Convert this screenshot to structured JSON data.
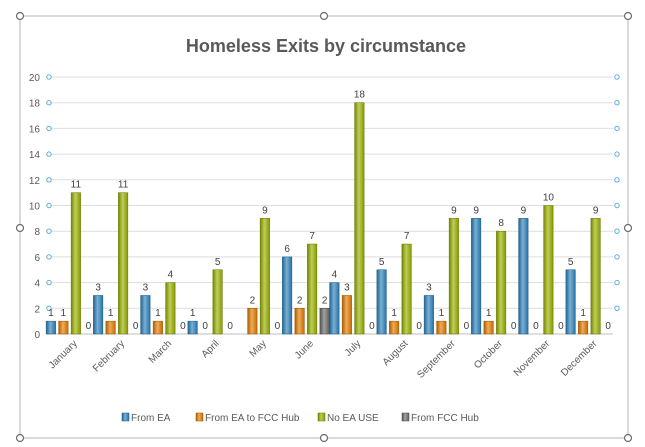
{
  "chart_data": {
    "type": "bar",
    "title": "Homeless Exits by circumstance",
    "xlabel": "",
    "ylabel": "",
    "ylim": [
      0,
      20
    ],
    "yticks": [
      "0",
      "2",
      "4",
      "6",
      "8",
      "10",
      "12",
      "14",
      "16",
      "18",
      "20"
    ],
    "grid": true,
    "legend": "bottom",
    "categories": [
      "January",
      "February",
      "March",
      "April",
      "May",
      "June",
      "July",
      "August",
      "September",
      "October",
      "November",
      "December"
    ],
    "series": [
      {
        "name": "From EA",
        "color": "#2E86C1",
        "values": [
          1,
          3,
          3,
          1,
          0,
          6,
          4,
          5,
          3,
          9,
          9,
          5
        ],
        "labels": [
          "1",
          "3",
          "3",
          "1",
          "",
          "6",
          "4",
          "5",
          "3",
          "9",
          "9",
          "5"
        ]
      },
      {
        "name": "From EA to FCC Hub",
        "color": "#E67E00",
        "values": [
          1,
          1,
          1,
          0,
          2,
          2,
          3,
          1,
          1,
          1,
          0,
          1
        ],
        "labels": [
          "1",
          "1",
          "1",
          "0",
          "2",
          "2",
          "3",
          "1",
          "1",
          "1",
          "0",
          "1"
        ]
      },
      {
        "name": "No EA USE",
        "color": "#9CB400",
        "values": [
          11,
          11,
          4,
          5,
          9,
          7,
          18,
          7,
          9,
          8,
          10,
          9
        ],
        "labels": [
          "11",
          "11",
          "4",
          "5",
          "9",
          "7",
          "18",
          "7",
          "9",
          "8",
          "10",
          "9"
        ]
      },
      {
        "name": "From FCC Hub",
        "color": "#6E6E6E",
        "values": [
          0,
          0,
          0,
          0,
          0,
          2,
          0,
          0,
          0,
          0,
          0,
          0
        ],
        "labels": [
          "0",
          "0",
          "0",
          "0",
          "0",
          "2",
          "0",
          "0",
          "0",
          "0",
          "0",
          "0"
        ]
      }
    ]
  }
}
